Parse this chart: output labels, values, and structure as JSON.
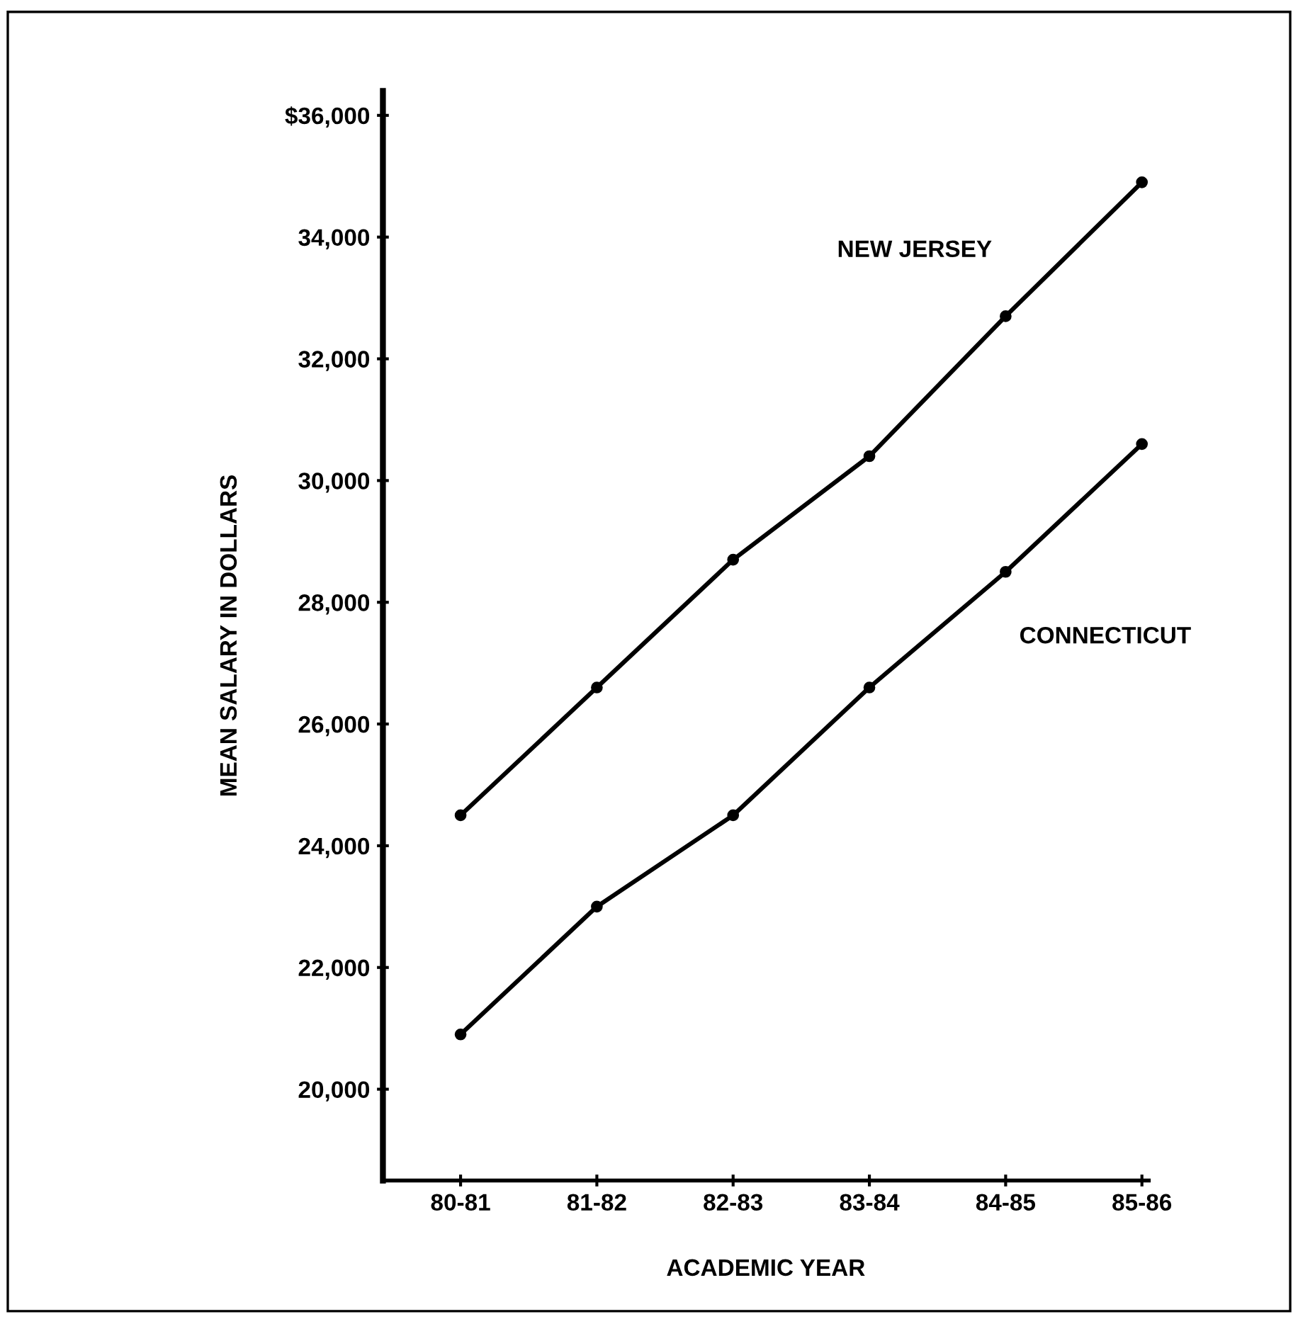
{
  "chart_data": {
    "type": "line",
    "xlabel": "ACADEMIC YEAR",
    "ylabel": "MEAN SALARY IN DOLLARS",
    "categories": [
      "80-81",
      "81-82",
      "82-83",
      "83-84",
      "84-85",
      "85-86"
    ],
    "series": [
      {
        "name": "NEW JERSEY",
        "color": "#000000",
        "values": [
          24500,
          26600,
          28700,
          30400,
          32700,
          34900
        ]
      },
      {
        "name": "CONNECTICUT",
        "color": "#000000",
        "values": [
          20900,
          23000,
          24500,
          26600,
          28500,
          30600
        ]
      }
    ],
    "ylim": [
      18500,
      36400
    ],
    "yticks": [
      {
        "value": 20000,
        "label": "20,000"
      },
      {
        "value": 22000,
        "label": "22,000"
      },
      {
        "value": 24000,
        "label": "24,000"
      },
      {
        "value": 26000,
        "label": "26,000"
      },
      {
        "value": 28000,
        "label": "28,000"
      },
      {
        "value": 30000,
        "label": "30,000"
      },
      {
        "value": 32000,
        "label": "32,000"
      },
      {
        "value": 34000,
        "label": "34,000"
      },
      {
        "value": 36000,
        "label": "$36,000"
      }
    ],
    "marker": "circle",
    "line_style": "solid",
    "grid": false,
    "legend": false
  }
}
